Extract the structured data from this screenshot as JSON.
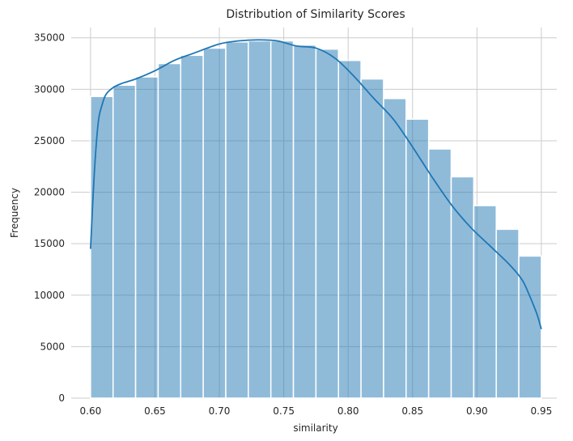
{
  "chart_data": {
    "type": "bar",
    "title": "Distribution of Similarity Scores",
    "xlabel": "similarity",
    "ylabel": "Frequency",
    "xlim": [
      0.585,
      0.962
    ],
    "ylim": [
      0,
      36000
    ],
    "grid": true,
    "x_ticks": [
      "0.60",
      "0.65",
      "0.70",
      "0.75",
      "0.80",
      "0.85",
      "0.90",
      "0.95"
    ],
    "x_tick_values": [
      0.6,
      0.65,
      0.7,
      0.75,
      0.8,
      0.85,
      0.9,
      0.95
    ],
    "y_ticks": [
      "0",
      "5000",
      "10000",
      "15000",
      "20000",
      "25000",
      "30000",
      "35000"
    ],
    "y_tick_values": [
      0,
      5000,
      10000,
      15000,
      20000,
      25000,
      30000,
      35000
    ],
    "bin_edges": [
      0.6,
      0.6175,
      0.635,
      0.6525,
      0.67,
      0.6875,
      0.705,
      0.7225,
      0.74,
      0.7575,
      0.775,
      0.7925,
      0.81,
      0.8275,
      0.845,
      0.8625,
      0.88,
      0.8975,
      0.915,
      0.9325,
      0.95
    ],
    "values": [
      29300,
      30400,
      31200,
      32500,
      33300,
      34000,
      34600,
      34700,
      34700,
      34300,
      33900,
      32800,
      31000,
      29100,
      27100,
      24200,
      21500,
      18700,
      16400,
      13800
    ],
    "kde": {
      "x": [
        0.6,
        0.603,
        0.606,
        0.609,
        0.612,
        0.618,
        0.625,
        0.635,
        0.65,
        0.665,
        0.68,
        0.7,
        0.715,
        0.73,
        0.745,
        0.76,
        0.775,
        0.79,
        0.805,
        0.82,
        0.835,
        0.85,
        0.865,
        0.88,
        0.895,
        0.91,
        0.925,
        0.935,
        0.94,
        0.944,
        0.947,
        0.95
      ],
      "y": [
        14500,
        22000,
        26800,
        28500,
        29500,
        30200,
        30600,
        31000,
        31800,
        32800,
        33500,
        34400,
        34700,
        34800,
        34700,
        34200,
        34000,
        33000,
        31200,
        29100,
        27100,
        24400,
        21500,
        18800,
        16600,
        14800,
        13000,
        11500,
        10200,
        9000,
        8000,
        6700
      ]
    },
    "colors": {
      "bar_fill": "#1f77b4",
      "bar_fill_opacity": 0.5,
      "bar_edge": "#ffffff",
      "kde_line": "#1f77b4",
      "grid": "#cccccc"
    }
  }
}
